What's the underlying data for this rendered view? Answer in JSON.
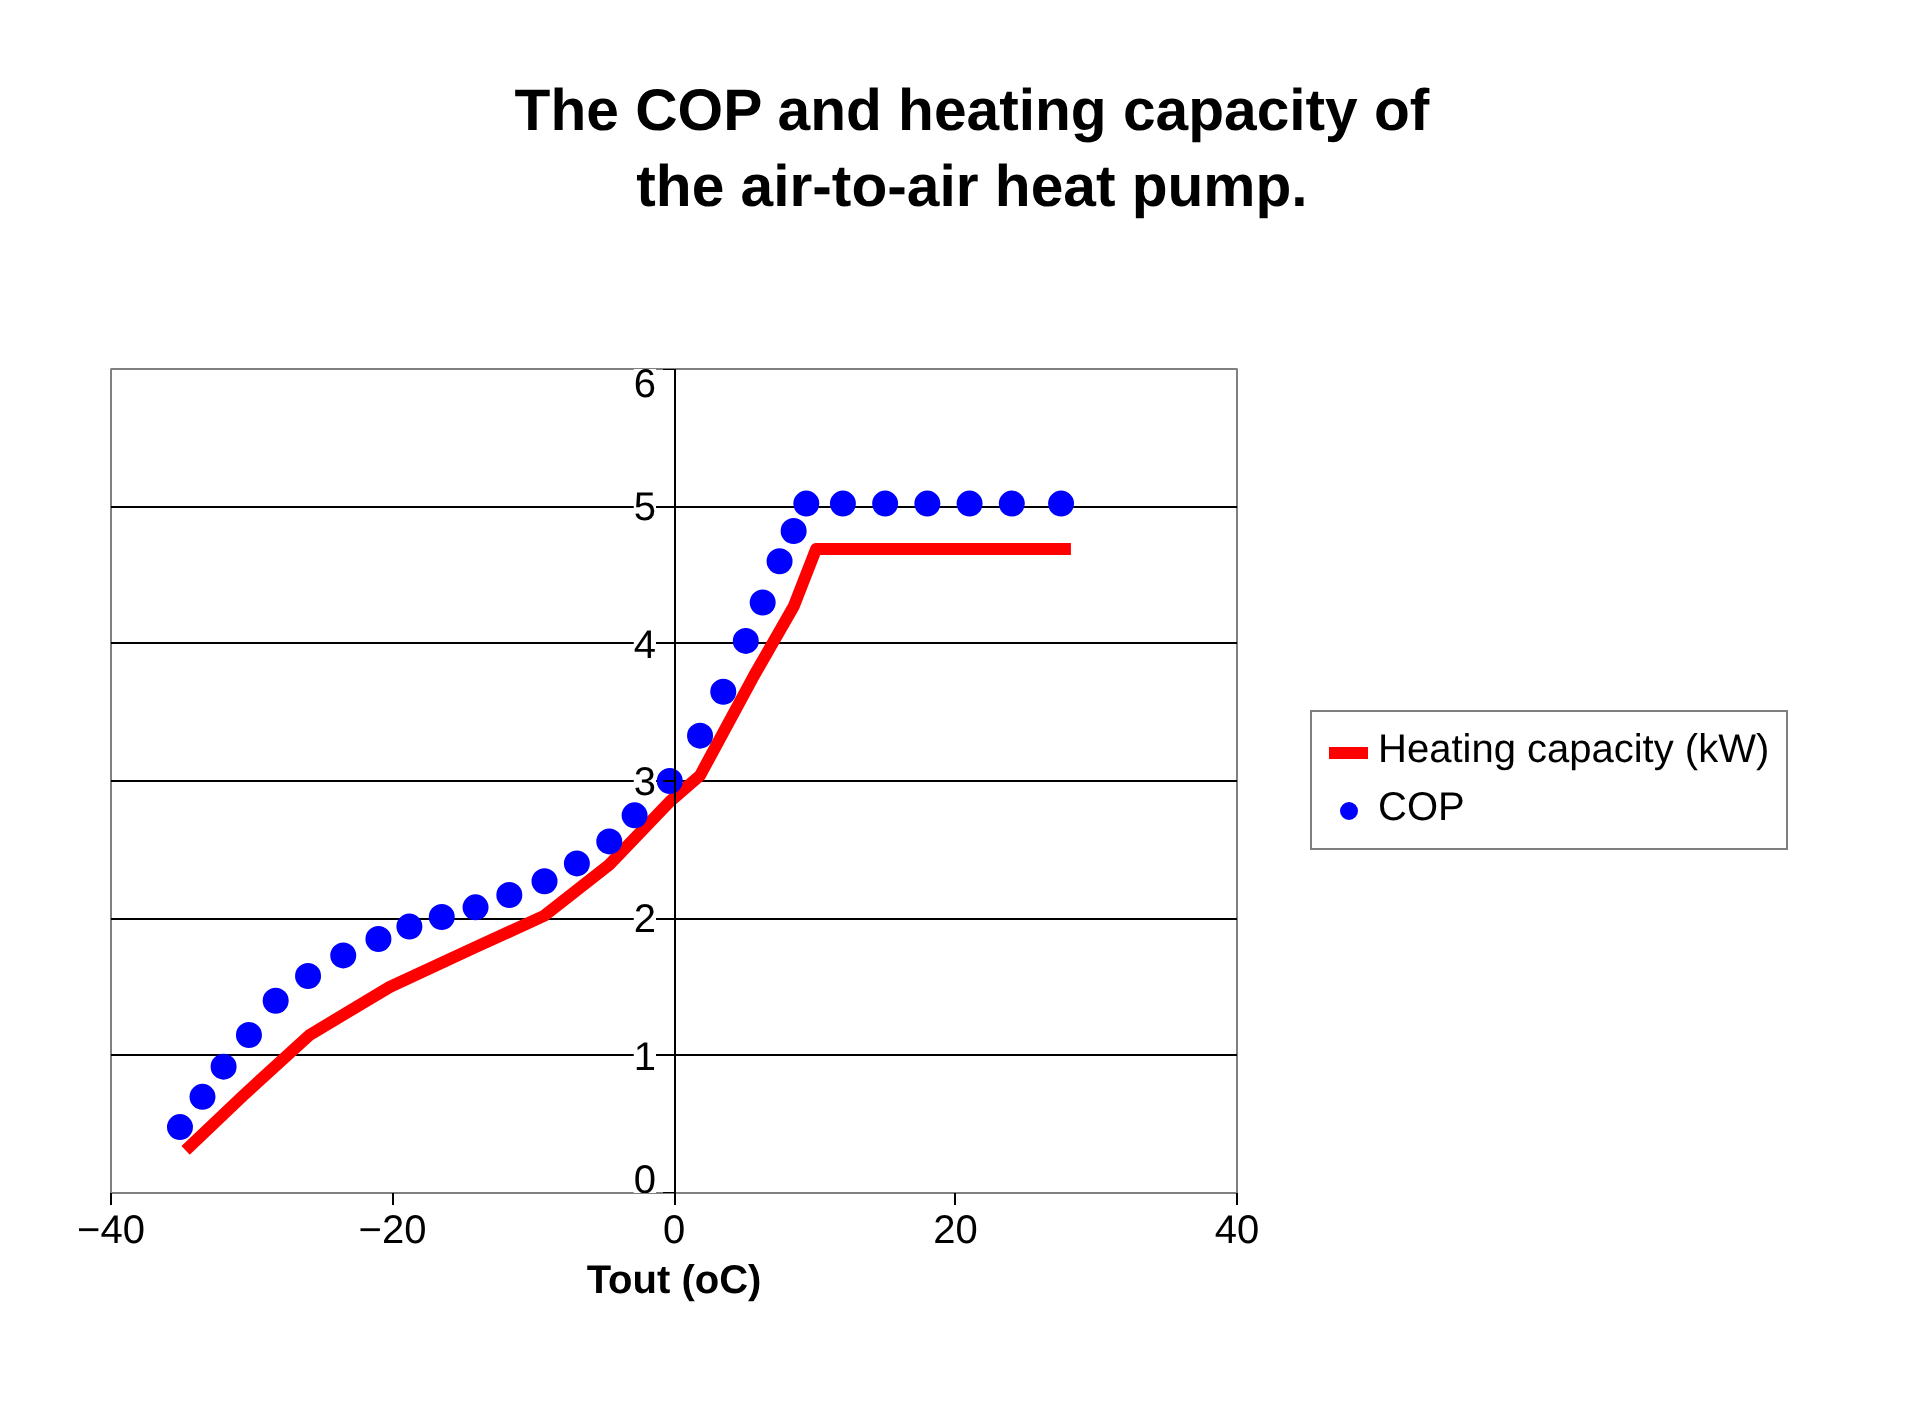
{
  "chart_data": {
    "type": "scatter",
    "title": "The COP and heating capacity of\nthe air-to-air heat pump.",
    "xlabel": "Tout (oC)",
    "xlim": [
      -40,
      40
    ],
    "xticks": [
      -40,
      -20,
      0,
      20,
      40
    ],
    "ylim": [
      0,
      6
    ],
    "yticks": [
      0,
      1,
      2,
      3,
      4,
      5,
      6
    ],
    "grid": "y",
    "legend": "right",
    "series": [
      {
        "name": "Heating capacity (kW)",
        "type": "line",
        "color": "#ff0000",
        "x": [
          -34.7,
          -30.6,
          -25.9,
          -20.2,
          -14.1,
          -9.2,
          -4.6,
          -0.3,
          1.85,
          5.7,
          8.5,
          10.1,
          28.2
        ],
        "values": [
          0.31,
          0.71,
          1.15,
          1.5,
          1.79,
          2.02,
          2.39,
          2.85,
          3.04,
          3.77,
          4.27,
          4.69,
          4.69
        ]
      },
      {
        "name": "COP",
        "marker": "circle",
        "color": "#0000ff",
        "x": [
          -35.1,
          -33.5,
          -32,
          -30.2,
          -28.3,
          -26,
          -23.5,
          -21,
          -18.8,
          -16.5,
          -14.1,
          -11.7,
          -9.2,
          -6.9,
          -4.6,
          -2.8,
          -0.3,
          1.85,
          3.5,
          5.1,
          6.3,
          7.5,
          8.5,
          9.4,
          12,
          15,
          18,
          21,
          24,
          27.5
        ],
        "values": [
          0.48,
          0.7,
          0.92,
          1.15,
          1.4,
          1.58,
          1.73,
          1.85,
          1.94,
          2.01,
          2.08,
          2.17,
          2.27,
          2.4,
          2.56,
          2.75,
          3.0,
          3.33,
          3.65,
          4.02,
          4.3,
          4.6,
          4.82,
          5.02,
          5.02,
          5.02,
          5.02,
          5.02,
          5.02,
          5.02
        ]
      }
    ]
  }
}
